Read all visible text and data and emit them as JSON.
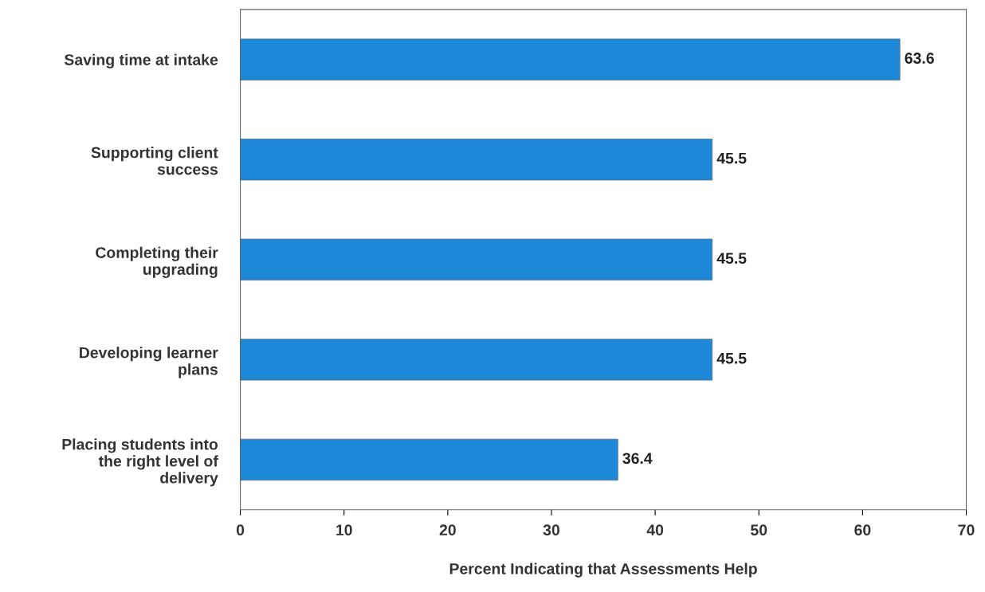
{
  "chart_data": {
    "type": "bar",
    "orientation": "horizontal",
    "categories": [
      "Saving time at intake",
      "Supporting client\nsuccess",
      "Completing their\nupgrading",
      "Developing learner\nplans",
      "Placing students into\nthe right level of\ndelivery"
    ],
    "values": [
      63.6,
      45.5,
      45.5,
      45.5,
      36.4
    ],
    "color": "#1e88d8",
    "xlabel": "Percent Indicating that Assessments Help",
    "xlim": [
      0,
      70
    ],
    "xticks": [
      0,
      10,
      20,
      30,
      40,
      50,
      60,
      70
    ],
    "data_labels": true,
    "grid": false,
    "legend": false
  }
}
